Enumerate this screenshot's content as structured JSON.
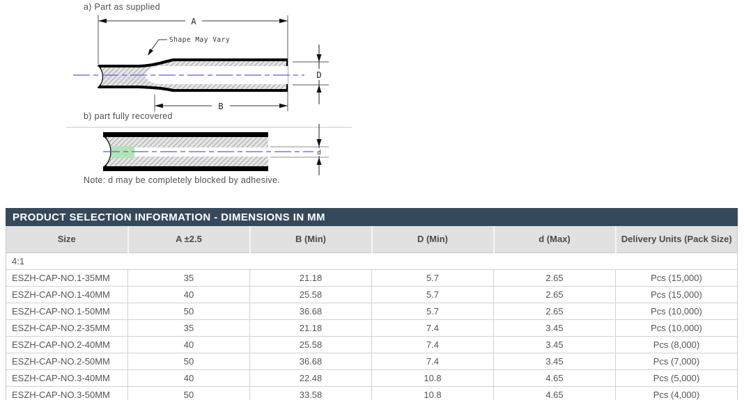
{
  "diagram": {
    "label_a": "a) Part as supplied",
    "label_b": "b) part fully recovered",
    "shape_note": "Shape May Vary",
    "note": "Note: d may be completely blocked by adhesive.",
    "dim_A": "A",
    "dim_B": "B",
    "dim_D": "D",
    "dim_d": "d",
    "colors": {
      "centerline": "#5b5be0",
      "adhesive_green": "#a7e7af",
      "outline": "#000000"
    }
  },
  "table": {
    "title": "PRODUCT SELECTION INFORMATION - DIMENSIONS IN MM",
    "title_bg": "#35495a",
    "columns": [
      "Size",
      "A ±2.5",
      "B (Min)",
      "D (Min)",
      "d (Max)",
      "Delivery Units (Pack Size)"
    ],
    "group_label": "4:1",
    "rows": [
      [
        "ESZH-CAP-NO.1-35MM",
        "35",
        "21.18",
        "5.7",
        "2.65",
        "Pcs (15,000)"
      ],
      [
        "ESZH-CAP-NO.1-40MM",
        "40",
        "25.58",
        "5.7",
        "2.65",
        "Pcs (15,000)"
      ],
      [
        "ESZH-CAP-NO.1-50MM",
        "50",
        "36.68",
        "5.7",
        "2.65",
        "Pcs (10,000)"
      ],
      [
        "ESZH-CAP-NO.2-35MM",
        "35",
        "21.18",
        "7.4",
        "3.45",
        "Pcs (10,000)"
      ],
      [
        "ESZH-CAP-NO.2-40MM",
        "40",
        "25.58",
        "7.4",
        "3.45",
        "Pcs (8,000)"
      ],
      [
        "ESZH-CAP-NO.2-50MM",
        "50",
        "36.68",
        "7.4",
        "3.45",
        "Pcs (7,000)"
      ],
      [
        "ESZH-CAP-NO.3-40MM",
        "40",
        "22.48",
        "10.8",
        "4.65",
        "Pcs (5,000)"
      ],
      [
        "ESZH-CAP-NO.3-50MM",
        "50",
        "33.58",
        "10.8",
        "4.65",
        "Pcs (4,000)"
      ]
    ]
  }
}
